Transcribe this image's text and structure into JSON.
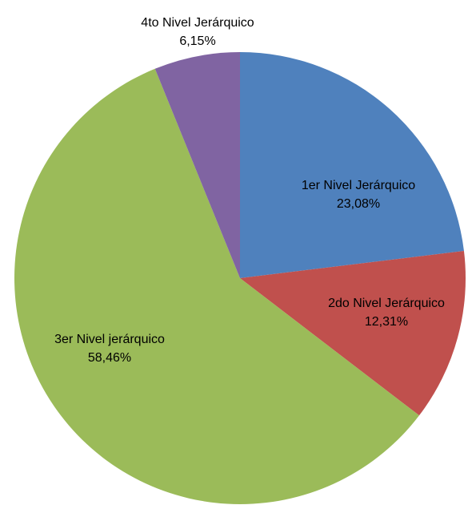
{
  "chart_data": {
    "type": "pie",
    "start_angle_deg": 0,
    "direction": "clockwise",
    "slices": [
      {
        "label": "1er Nivel Jerárquico",
        "value": 23.08,
        "value_label": "23,08%",
        "color": "#4F81BD"
      },
      {
        "label": "2do Nivel Jerárquico",
        "value": 12.31,
        "value_label": "12,31%",
        "color": "#C0504D"
      },
      {
        "label": "3er Nivel jerárquico",
        "value": 58.46,
        "value_label": "58,46%",
        "color": "#9BBB59"
      },
      {
        "label": "4to Nivel Jerárquico",
        "value": 6.15,
        "value_label": "6,15%",
        "color": "#8064A2"
      }
    ],
    "legend": "none"
  }
}
